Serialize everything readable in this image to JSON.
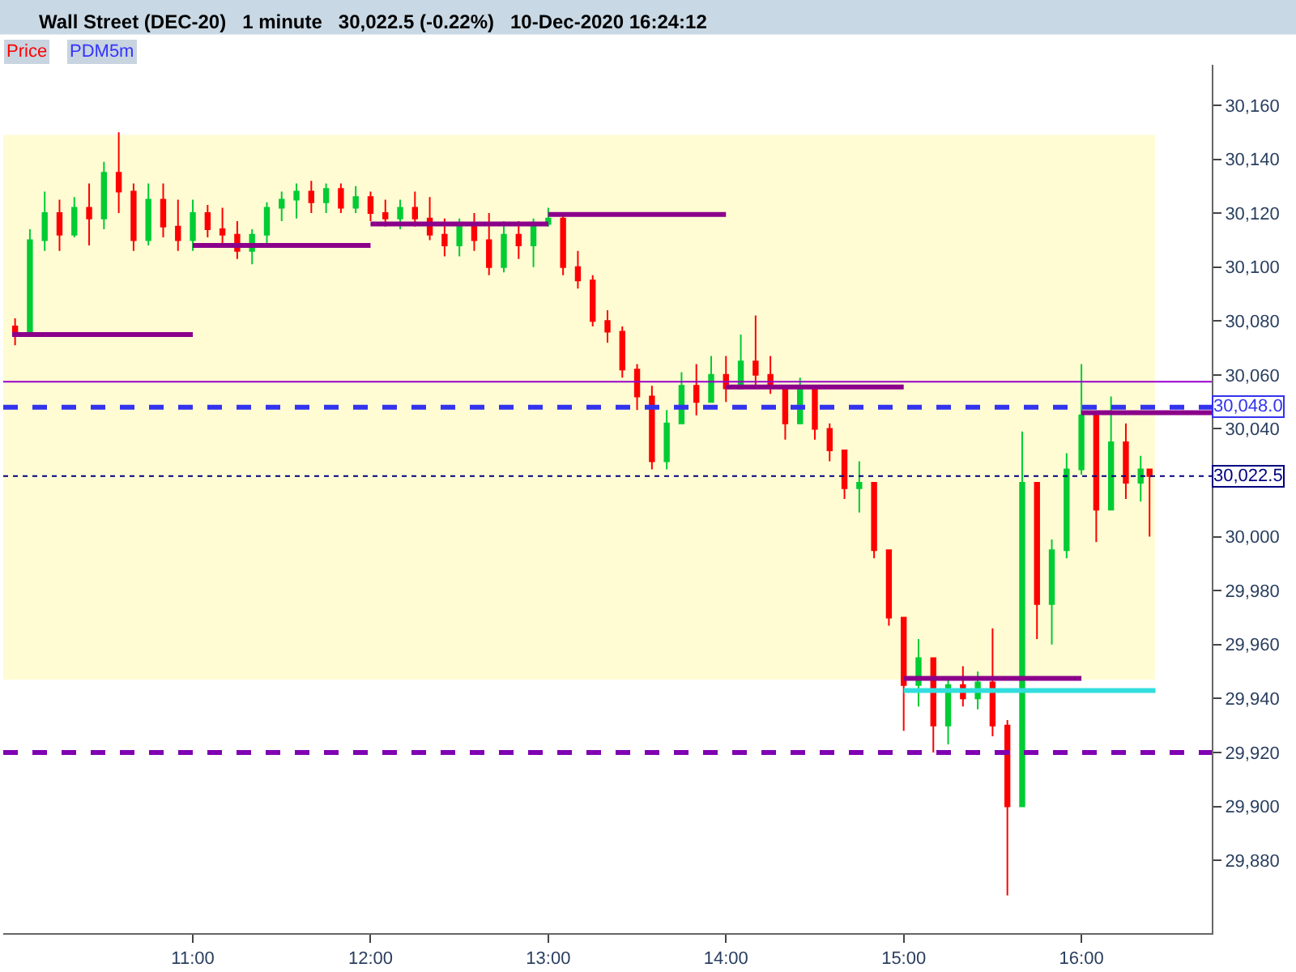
{
  "chart_data": {
    "type": "candlestick",
    "title": "Wall Street (DEC-20)   1 minute   30,022.5 (-0.22%)   10-Dec-2020 16:24:12",
    "annotations": [
      "Price",
      "PDM5m"
    ],
    "colors": [
      "#ff0000",
      "#00cc33",
      "#00cc33",
      "#ff0000",
      "#00cc33",
      "#ff0000",
      "#00cc33",
      "#ff0000",
      "#ff0000",
      "#00cc33",
      "#ff0000",
      "#ff0000",
      "#00cc33",
      "#ff0000",
      "#ff0000",
      "#ff0000",
      "#00cc33",
      "#00cc33",
      "#00cc33",
      "#00cc33",
      "#ff0000",
      "#00cc33",
      "#ff0000",
      "#00cc33",
      "#ff0000",
      "#ff0000",
      "#00cc33",
      "#ff0000",
      "#ff0000",
      "#ff0000",
      "#00cc33",
      "#ff0000",
      "#ff0000",
      "#00cc33",
      "#ff0000",
      "#00cc33",
      "#00cc33",
      "#ff0000",
      "#ff0000",
      "#ff0000",
      "#ff0000",
      "#ff0000",
      "#ff0000",
      "#ff0000",
      "#00cc33",
      "#00cc33",
      "#ff0000",
      "#00cc33",
      "#ff0000",
      "#00cc33",
      "#ff0000",
      "#ff0000",
      "#ff0000",
      "#00cc33",
      "#ff0000",
      "#ff0000",
      "#ff0000",
      "#00cc33",
      "#ff0000",
      "#ff0000",
      "#ff0000",
      "#00cc33",
      "#ff0000",
      "#00cc33",
      "#ff0000",
      "#00cc33",
      "#ff0000",
      "#ff0000",
      "#00cc33",
      "#ff0000",
      "#00cc33",
      "#00cc33",
      "#00cc33",
      "#ff0000",
      "#00cc33",
      "#ff0000",
      "#00cc33",
      "#ff0000"
    ],
    "x": [
      "2020-12-10T10:00",
      "2020-12-10T10:05",
      "2020-12-10T10:10",
      "2020-12-10T10:15",
      "2020-12-10T10:20",
      "2020-12-10T10:25",
      "2020-12-10T10:30",
      "2020-12-10T10:35",
      "2020-12-10T10:40",
      "2020-12-10T10:45",
      "2020-12-10T10:50",
      "2020-12-10T10:55",
      "2020-12-10T11:00",
      "2020-12-10T11:05",
      "2020-12-10T11:10",
      "2020-12-10T11:15",
      "2020-12-10T11:20",
      "2020-12-10T11:25",
      "2020-12-10T11:30",
      "2020-12-10T11:35",
      "2020-12-10T11:40",
      "2020-12-10T11:45",
      "2020-12-10T11:50",
      "2020-12-10T11:55",
      "2020-12-10T12:00",
      "2020-12-10T12:05",
      "2020-12-10T12:10",
      "2020-12-10T12:15",
      "2020-12-10T12:20",
      "2020-12-10T12:25",
      "2020-12-10T12:30",
      "2020-12-10T12:35",
      "2020-12-10T12:40",
      "2020-12-10T12:45",
      "2020-12-10T12:50",
      "2020-12-10T12:55",
      "2020-12-10T13:00",
      "2020-12-10T13:05",
      "2020-12-10T13:10",
      "2020-12-10T13:15",
      "2020-12-10T13:20",
      "2020-12-10T13:25",
      "2020-12-10T13:30",
      "2020-12-10T13:35",
      "2020-12-10T13:40",
      "2020-12-10T13:45",
      "2020-12-10T13:50",
      "2020-12-10T13:55",
      "2020-12-10T14:00",
      "2020-12-10T14:05",
      "2020-12-10T14:10",
      "2020-12-10T14:15",
      "2020-12-10T14:20",
      "2020-12-10T14:25",
      "2020-12-10T14:30",
      "2020-12-10T14:35",
      "2020-12-10T14:40",
      "2020-12-10T14:45",
      "2020-12-10T14:50",
      "2020-12-10T14:55",
      "2020-12-10T15:00",
      "2020-12-10T15:05",
      "2020-12-10T15:10",
      "2020-12-10T15:15",
      "2020-12-10T15:20",
      "2020-12-10T15:25",
      "2020-12-10T15:30",
      "2020-12-10T15:35",
      "2020-12-10T15:40",
      "2020-12-10T15:45",
      "2020-12-10T15:50",
      "2020-12-10T15:55",
      "2020-12-10T16:00",
      "2020-12-10T16:05",
      "2020-12-10T16:10",
      "2020-12-10T16:15",
      "2020-12-10T16:20",
      "2020-12-10T16:23"
    ],
    "ohlc": [
      [
        30078,
        30081,
        30071,
        30075
      ],
      [
        30075,
        30114,
        30075,
        30110
      ],
      [
        30110,
        30128,
        30106,
        30120
      ],
      [
        30120,
        30125,
        30106,
        30112
      ],
      [
        30112,
        30126,
        30111,
        30122
      ],
      [
        30122,
        30131,
        30108,
        30118
      ],
      [
        30118,
        30139,
        30114,
        30135
      ],
      [
        30135,
        30150,
        30120,
        30128
      ],
      [
        30128,
        30131,
        30106,
        30110
      ],
      [
        30110,
        30131,
        30108,
        30125
      ],
      [
        30125,
        30131,
        30111,
        30115
      ],
      [
        30115,
        30125,
        30106,
        30110
      ],
      [
        30110,
        30125,
        30106,
        30120
      ],
      [
        30120,
        30123,
        30111,
        30114
      ],
      [
        30114,
        30122,
        30108,
        30112
      ],
      [
        30112,
        30117,
        30103,
        30106
      ],
      [
        30106,
        30114,
        30101,
        30112
      ],
      [
        30112,
        30124,
        30108,
        30122
      ],
      [
        30122,
        30128,
        30117,
        30125
      ],
      [
        30125,
        30131,
        30118,
        30128
      ],
      [
        30128,
        30132,
        30120,
        30124
      ],
      [
        30124,
        30131,
        30120,
        30129
      ],
      [
        30129,
        30131,
        30120,
        30122
      ],
      [
        30122,
        30130,
        30120,
        30126
      ],
      [
        30126,
        30128,
        30117,
        30120
      ],
      [
        30120,
        30125,
        30115,
        30118
      ],
      [
        30118,
        30125,
        30114,
        30122
      ],
      [
        30122,
        30128,
        30115,
        30118
      ],
      [
        30118,
        30126,
        30110,
        30112
      ],
      [
        30112,
        30118,
        30104,
        30108
      ],
      [
        30108,
        30118,
        30104,
        30115
      ],
      [
        30115,
        30120,
        30106,
        30110
      ],
      [
        30110,
        30120,
        30097,
        30100
      ],
      [
        30100,
        30117,
        30098,
        30112
      ],
      [
        30112,
        30117,
        30103,
        30108
      ],
      [
        30108,
        30118,
        30100,
        30116
      ],
      [
        30116,
        30122,
        30115,
        30118
      ],
      [
        30118,
        30120,
        30097,
        30100
      ],
      [
        30100,
        30106,
        30092,
        30095
      ],
      [
        30095,
        30097,
        30078,
        30080
      ],
      [
        30080,
        30084,
        30072,
        30076
      ],
      [
        30076,
        30078,
        30059,
        30062
      ],
      [
        30062,
        30064,
        30047,
        30052
      ],
      [
        30052,
        30056,
        30025,
        30028
      ],
      [
        30028,
        30047,
        30025,
        30042
      ],
      [
        30042,
        30061,
        30042,
        30056
      ],
      [
        30056,
        30064,
        30045,
        30050
      ],
      [
        30050,
        30067,
        30050,
        30060
      ],
      [
        30060,
        30067,
        30050,
        30055
      ],
      [
        30055,
        30075,
        30055,
        30065
      ],
      [
        30065,
        30082,
        30056,
        30060
      ],
      [
        30060,
        30067,
        30053,
        30056
      ],
      [
        30056,
        30056,
        30036,
        30042
      ],
      [
        30042,
        30059,
        30042,
        30055
      ],
      [
        30055,
        30056,
        30036,
        30040
      ],
      [
        30040,
        30042,
        30028,
        30032
      ],
      [
        30032,
        30032,
        30014,
        30018
      ],
      [
        30018,
        30028,
        30009,
        30020
      ],
      [
        30020,
        30020,
        29992,
        29995
      ],
      [
        29995,
        29995,
        29967,
        29970
      ],
      [
        29970,
        29970,
        29928,
        29945
      ],
      [
        29945,
        29962,
        29937,
        29955
      ],
      [
        29955,
        29955,
        29920,
        29930
      ],
      [
        29930,
        29948,
        29923,
        29945
      ],
      [
        29945,
        29952,
        29937,
        29940
      ],
      [
        29940,
        29950,
        29936,
        29946
      ],
      [
        29946,
        29966,
        29926,
        29930
      ],
      [
        29930,
        29932,
        29867,
        29900
      ],
      [
        29900,
        30039,
        29900,
        30020
      ],
      [
        30020,
        30020,
        29962,
        29975
      ],
      [
        29975,
        29999,
        29960,
        29995
      ],
      [
        29995,
        30031,
        29992,
        30025
      ],
      [
        30025,
        30064,
        30023,
        30045
      ],
      [
        30045,
        30045,
        29998,
        30010
      ],
      [
        30010,
        30052,
        30010,
        30035
      ],
      [
        30035,
        30042,
        30014,
        30020
      ],
      [
        30020,
        30030,
        30013,
        30025
      ],
      [
        30025,
        30025,
        30000,
        30022.5
      ]
    ],
    "series": [
      {
        "type": "line",
        "color": "#8b008b",
        "x": [
          "2020-12-10T09:59",
          "2020-12-10T11:00"
        ],
        "values": [
          30075,
          30075
        ]
      },
      {
        "type": "line",
        "color": "#8b008b",
        "x": [
          "2020-12-10T11:00",
          "2020-12-10T12:00"
        ],
        "values": [
          30108,
          30108
        ]
      },
      {
        "type": "line",
        "color": "#8b008b",
        "x": [
          "2020-12-10T12:00",
          "2020-12-10T13:00"
        ],
        "values": [
          30116,
          30116
        ]
      },
      {
        "type": "line",
        "color": "#8b008b",
        "x": [
          "2020-12-10T13:00",
          "2020-12-10T14:00"
        ],
        "values": [
          30119.5,
          30119.5
        ]
      },
      {
        "type": "line",
        "color": "#8b008b",
        "x": [
          "2020-12-10T14:00",
          "2020-12-10T15:00"
        ],
        "values": [
          30055.5,
          30055.5
        ]
      },
      {
        "type": "line",
        "color": "#8b008b",
        "x": [
          "2020-12-10T15:00",
          "2020-12-10T16:00"
        ],
        "values": [
          29947.5,
          29947.5
        ]
      },
      {
        "type": "line",
        "color": "#8b008b",
        "x": [
          "2020-12-10T16:00",
          "2020-12-10T16:44"
        ],
        "values": [
          30046,
          30046
        ]
      },
      {
        "type": "line",
        "color": "#33dddd",
        "x": [
          "2020-12-10T15:00",
          "2020-12-10T16:25"
        ],
        "values": [
          29943,
          29943
        ]
      }
    ],
    "bands": [
      {
        "axis": "y",
        "from": 29947,
        "to": 30149,
        "color": "#fffcd4"
      }
    ],
    "ref_lines": [
      {
        "axis": "y",
        "value": 30057.5,
        "color": "#9900cc",
        "line_style": "solid"
      },
      {
        "axis": "y",
        "value": 30048,
        "label": "30,048.0",
        "color": "#3333ee",
        "line_style": "dashed"
      },
      {
        "axis": "y",
        "value": 30022.5,
        "label": "30,022.5",
        "color": "#000080",
        "line_style": "dotted"
      },
      {
        "axis": "y",
        "value": 29920,
        "color": "#7f00b2",
        "line_style": "dashed"
      }
    ],
    "xlim": [
      "2020-12-10T09:56",
      "2020-12-10T16:44"
    ],
    "xticks": [
      {
        "value": "2020-12-10T11:00",
        "label": "11:00"
      },
      {
        "value": "2020-12-10T12:00",
        "label": "12:00"
      },
      {
        "value": "2020-12-10T13:00",
        "label": "13:00"
      },
      {
        "value": "2020-12-10T14:00",
        "label": "14:00"
      },
      {
        "value": "2020-12-10T15:00",
        "label": "15:00"
      },
      {
        "value": "2020-12-10T16:00",
        "label": "16:00"
      }
    ],
    "ylim": [
      29853,
      30175
    ],
    "yticks": [
      {
        "value": 29880,
        "label": "29,880"
      },
      {
        "value": 29900,
        "label": "29,900"
      },
      {
        "value": 29920,
        "label": "29,920"
      },
      {
        "value": 29940,
        "label": "29,940"
      },
      {
        "value": 29960,
        "label": "29,960"
      },
      {
        "value": 29980,
        "label": "29,980"
      },
      {
        "value": 30000,
        "label": "30,000"
      },
      {
        "value": 30040,
        "label": "30,040"
      },
      {
        "value": 30060,
        "label": "30,060"
      },
      {
        "value": 30080,
        "label": "30,080"
      },
      {
        "value": 30100,
        "label": "30,100"
      },
      {
        "value": 30120,
        "label": "30,120"
      },
      {
        "value": 30140,
        "label": "30,140"
      },
      {
        "value": 30160,
        "label": "30,160"
      }
    ],
    "grid": false
  }
}
